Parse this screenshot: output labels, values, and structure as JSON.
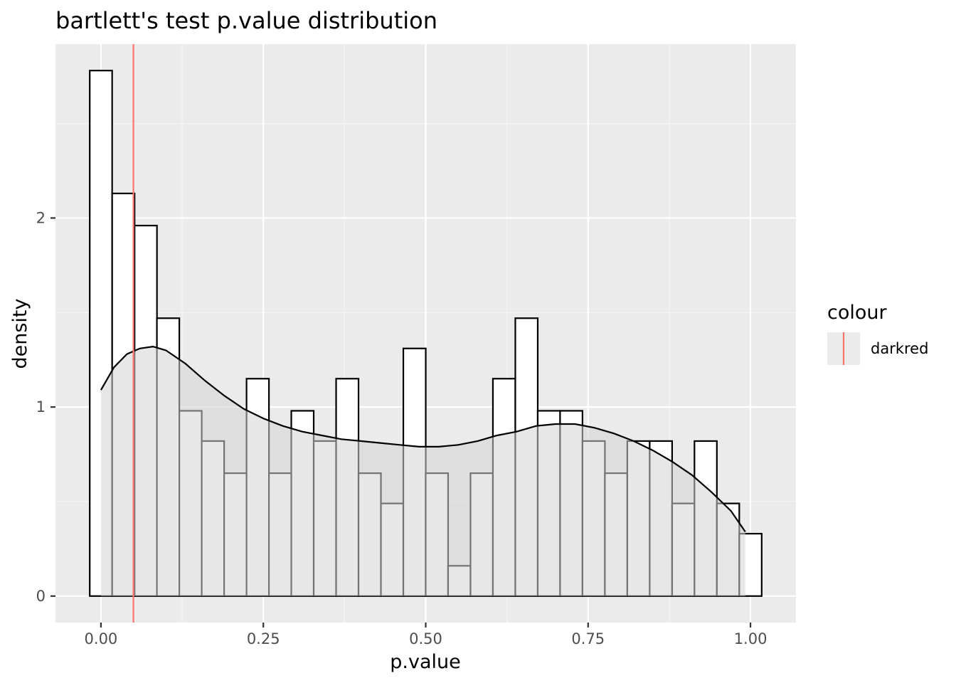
{
  "chart_data": {
    "type": "histogram",
    "title": "bartlett's test p.value distribution",
    "xlabel": "p.value",
    "ylabel": "density",
    "xlim": [
      -0.07,
      1.07
    ],
    "ylim": [
      -0.14,
      2.92
    ],
    "x_ticks": [
      {
        "value": 0.0,
        "label": "0.00"
      },
      {
        "value": 0.25,
        "label": "0.25"
      },
      {
        "value": 0.5,
        "label": "0.50"
      },
      {
        "value": 0.75,
        "label": "0.75"
      },
      {
        "value": 1.0,
        "label": "1.00"
      }
    ],
    "y_ticks": [
      {
        "value": 0,
        "label": "0"
      },
      {
        "value": 1,
        "label": "1"
      },
      {
        "value": 2,
        "label": "2"
      }
    ],
    "bin_width": 0.0345,
    "bins": [
      {
        "center": 0.0,
        "density": 2.78
      },
      {
        "center": 0.0345,
        "density": 2.13
      },
      {
        "center": 0.069,
        "density": 1.96
      },
      {
        "center": 0.1034,
        "density": 1.47
      },
      {
        "center": 0.1379,
        "density": 0.98
      },
      {
        "center": 0.1724,
        "density": 0.82
      },
      {
        "center": 0.2069,
        "density": 0.65
      },
      {
        "center": 0.2414,
        "density": 1.15
      },
      {
        "center": 0.2759,
        "density": 0.65
      },
      {
        "center": 0.3103,
        "density": 0.98
      },
      {
        "center": 0.3448,
        "density": 0.82
      },
      {
        "center": 0.3793,
        "density": 1.15
      },
      {
        "center": 0.4138,
        "density": 0.65
      },
      {
        "center": 0.4483,
        "density": 0.49
      },
      {
        "center": 0.4828,
        "density": 1.31
      },
      {
        "center": 0.5172,
        "density": 0.65
      },
      {
        "center": 0.5517,
        "density": 0.16
      },
      {
        "center": 0.5862,
        "density": 0.65
      },
      {
        "center": 0.6207,
        "density": 1.15
      },
      {
        "center": 0.6552,
        "density": 1.47
      },
      {
        "center": 0.6897,
        "density": 0.98
      },
      {
        "center": 0.7241,
        "density": 0.98
      },
      {
        "center": 0.7586,
        "density": 0.82
      },
      {
        "center": 0.7931,
        "density": 0.65
      },
      {
        "center": 0.8276,
        "density": 0.82
      },
      {
        "center": 0.8621,
        "density": 0.82
      },
      {
        "center": 0.8966,
        "density": 0.49
      },
      {
        "center": 0.931,
        "density": 0.82
      },
      {
        "center": 0.9655,
        "density": 0.49
      },
      {
        "center": 1.0,
        "density": 0.33
      }
    ],
    "density_curve": {
      "x": [
        0.0,
        0.02,
        0.04,
        0.06,
        0.08,
        0.1,
        0.13,
        0.16,
        0.19,
        0.22,
        0.25,
        0.28,
        0.31,
        0.34,
        0.37,
        0.4,
        0.43,
        0.46,
        0.49,
        0.52,
        0.55,
        0.58,
        0.61,
        0.64,
        0.67,
        0.7,
        0.73,
        0.76,
        0.79,
        0.82,
        0.85,
        0.88,
        0.91,
        0.94,
        0.97,
        0.992
      ],
      "y": [
        1.09,
        1.21,
        1.28,
        1.31,
        1.32,
        1.3,
        1.23,
        1.14,
        1.06,
        0.99,
        0.94,
        0.9,
        0.87,
        0.85,
        0.83,
        0.82,
        0.81,
        0.8,
        0.79,
        0.79,
        0.8,
        0.82,
        0.85,
        0.87,
        0.9,
        0.91,
        0.91,
        0.89,
        0.86,
        0.82,
        0.77,
        0.71,
        0.64,
        0.55,
        0.45,
        0.34
      ],
      "fill": "#d3d3d3",
      "fill_opacity": 0.55
    },
    "vline": {
      "x": 0.05,
      "color": "#F8766D",
      "legend_value": "darkred"
    },
    "legend": {
      "title": "colour",
      "entries": [
        "darkred"
      ],
      "position": "right"
    },
    "colors": {
      "panel_background": "#EBEBEB",
      "grid_major": "#FFFFFF",
      "grid_minor": "#F5F5F5",
      "bar_fill": "#FFFFFF",
      "bar_outline": "#000000"
    },
    "grid": true
  }
}
